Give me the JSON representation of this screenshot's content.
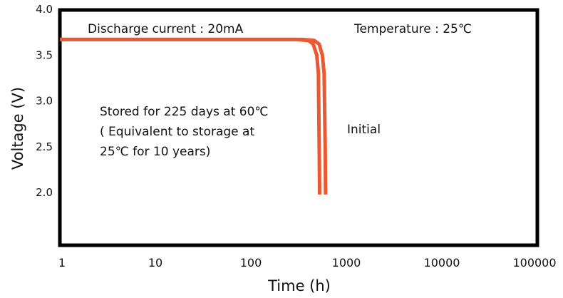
{
  "chart_data": {
    "type": "line",
    "title": "",
    "xlabel": "Time (h)",
    "ylabel": "Voltage (V)",
    "x_scale": "log",
    "xlim": [
      1,
      100000
    ],
    "ylim": [
      1.5,
      4.0
    ],
    "x_ticks": [
      "1",
      "10",
      "100",
      "1000",
      "10000",
      "100000"
    ],
    "y_ticks": [
      "4.0",
      "3.5",
      "3.0",
      "2.5",
      "2.0"
    ],
    "grid": false,
    "line_color": "#ea5a32",
    "series": [
      {
        "name": "Stored for 225 days at 60℃ (Equivalent to storage at 25℃ for 10 years)",
        "x": [
          1,
          300,
          400,
          450,
          490,
          510,
          520,
          525
        ],
        "y": [
          3.67,
          3.67,
          3.66,
          3.62,
          3.5,
          3.3,
          2.5,
          1.98
        ]
      },
      {
        "name": "Initial",
        "x": [
          1,
          350,
          460,
          520,
          560,
          585,
          600,
          605
        ],
        "y": [
          3.67,
          3.67,
          3.66,
          3.62,
          3.5,
          3.3,
          2.5,
          1.98
        ]
      }
    ],
    "annotations": {
      "discharge": "Discharge current : 20mA",
      "temperature": "Temperature : 25℃",
      "stored_line1": "Stored for 225 days at 60℃",
      "stored_line2": "( Equivalent to storage at",
      "stored_line3": "25℃ for 10 years)",
      "initial": "Initial"
    }
  }
}
